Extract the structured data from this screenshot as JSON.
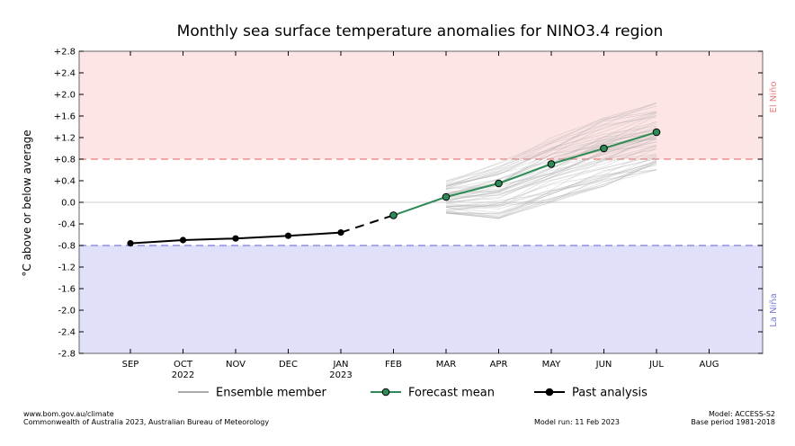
{
  "chart_data": {
    "type": "line",
    "title": "Monthly sea surface temperature anomalies for NINO3.4 region",
    "ylabel": "°C above or below average",
    "ylim": [
      -2.8,
      2.8
    ],
    "yticks": [
      "+2.8",
      "+2.4",
      "+2.0",
      "+1.6",
      "+1.2",
      "+0.8",
      "+0.4",
      "0.0",
      "-0.4",
      "-0.8",
      "-1.2",
      "-1.6",
      "-2.0",
      "-2.4",
      "-2.8"
    ],
    "ytick_values": [
      2.8,
      2.4,
      2.0,
      1.6,
      1.2,
      0.8,
      0.4,
      0.0,
      -0.4,
      -0.8,
      -1.2,
      -1.6,
      -2.0,
      -2.4,
      -2.8
    ],
    "categories": [
      "SEP",
      "OCT",
      "NOV",
      "DEC",
      "JAN",
      "FEB",
      "MAR",
      "APR",
      "MAY",
      "JUN",
      "JUL",
      "AUG"
    ],
    "category_sublabels": [
      "",
      "2022",
      "",
      "",
      "2023",
      "",
      "",
      "",
      "",
      "",
      "",
      ""
    ],
    "thresholds": [
      {
        "name": "El Niño",
        "value": 0.8,
        "color": "#e77c7c"
      },
      {
        "name": "La Niña",
        "value": -0.8,
        "color": "#7b7bd6"
      }
    ],
    "region_colors": {
      "el_nino": "#fde5e5",
      "la_nina": "#e0e0fb"
    },
    "series": [
      {
        "name": "Past analysis",
        "color": "#000000",
        "x": [
          "SEP",
          "OCT",
          "NOV",
          "DEC",
          "JAN"
        ],
        "values": [
          -0.76,
          -0.7,
          -0.67,
          -0.62,
          -0.56
        ]
      },
      {
        "name": "Forecast mean",
        "color": "#2e8b57",
        "x": [
          "FEB",
          "MAR",
          "APR",
          "MAY",
          "JUN",
          "JUL"
        ],
        "values": [
          -0.24,
          0.1,
          0.35,
          0.71,
          1.0,
          1.3
        ]
      }
    ],
    "ensemble_member_color": "#aaaaaa",
    "ensemble_months": [
      "MAR",
      "APR",
      "MAY",
      "JUN",
      "JUL"
    ],
    "ensemble_spread": {
      "min": [
        -0.2,
        -0.3,
        0.0,
        0.3,
        0.6
      ],
      "max": [
        0.4,
        0.8,
        1.2,
        1.6,
        1.85
      ]
    },
    "legend": {
      "placement": "bottom",
      "entries": [
        "Ensemble member",
        "Forecast mean",
        "Past analysis"
      ]
    }
  },
  "footer": {
    "url": "www.bom.gov.au/climate",
    "copyright": "Commonwealth of Australia 2023, Australian Bureau of Meteorology",
    "model_run": "Model run: 11 Feb 2023",
    "model": "Model: ACCESS-S2",
    "base_period": "Base period 1981-2018"
  }
}
